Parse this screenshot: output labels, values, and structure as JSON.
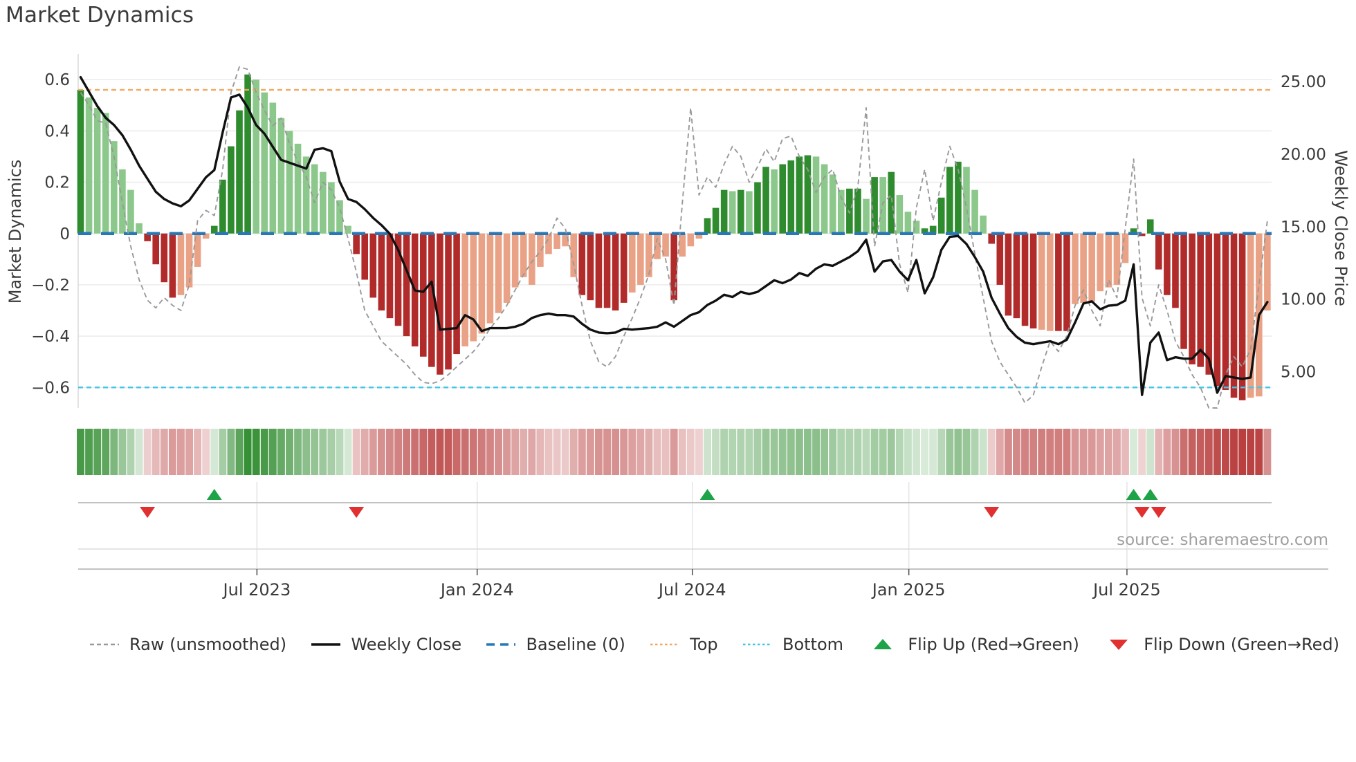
{
  "page": {
    "title": "Market Dynamics",
    "source_credit": "source: sharemaestro.com"
  },
  "colors": {
    "bar_green_strong": "#2e8b2e",
    "bar_green_light": "#8cc88c",
    "bar_red_strong": "#b22b2b",
    "bar_red_light": "#e9a286",
    "baseline_blue": "#2878b8",
    "top_orange": "#f0a860",
    "bottom_cyan": "#3ec6e8",
    "raw_gray": "#999999",
    "close_black": "#111111",
    "flip_up_green": "#1fa348",
    "flip_down_red": "#e03030",
    "grid": "#ebebeb",
    "panel_line": "#c2c2c2",
    "panel_line_light": "#dcdcdc",
    "panel_grid": "#e6e6e6",
    "axis_text": "#3a3a3a",
    "muted_text": "#a0a0a0"
  },
  "chart_data": {
    "type": "bar",
    "title": "Market Dynamics",
    "ylabel_left": "Market Dynamics",
    "ylabel_right": "Weekly Close Price",
    "weeks": 143,
    "ylim_left": [
      -0.68,
      0.7
    ],
    "ylim_right": [
      2.5,
      26.9
    ],
    "yticks_left_labels": [
      "0.6",
      "0.4",
      "0.2",
      "0",
      "−0.2",
      "−0.4",
      "−0.6"
    ],
    "yticks_left_values": [
      0.6,
      0.4,
      0.2,
      0,
      -0.2,
      -0.4,
      -0.6
    ],
    "yticks_right_labels": [
      "25.00",
      "20.00",
      "15.00",
      "10.00",
      "5.00"
    ],
    "yticks_right_values": [
      25,
      20,
      15,
      10,
      5
    ],
    "x_tick_labels": [
      "Jul 2023",
      "Jan 2024",
      "Jul 2024",
      "Jan 2025",
      "Jul 2025"
    ],
    "x_tick_weeks": [
      21.1,
      47.45,
      73.2,
      99.1,
      125.2
    ],
    "baseline": 0,
    "top_line": 0.56,
    "bottom_line": -0.6,
    "grid": "on",
    "legend_position": "bottom",
    "series": [
      {
        "name": "Oscillator (weekly bars)",
        "role": "bars",
        "axis": "left",
        "values": [
          0.56,
          0.53,
          0.49,
          0.47,
          0.36,
          0.25,
          0.17,
          0.04,
          -0.03,
          -0.12,
          -0.19,
          -0.25,
          -0.24,
          -0.21,
          -0.13,
          -0.02,
          0.03,
          0.21,
          0.34,
          0.48,
          0.62,
          0.6,
          0.55,
          0.51,
          0.45,
          0.4,
          0.35,
          0.3,
          0.27,
          0.24,
          0.2,
          0.13,
          0.03,
          -0.08,
          -0.18,
          -0.25,
          -0.3,
          -0.33,
          -0.36,
          -0.4,
          -0.44,
          -0.48,
          -0.52,
          -0.55,
          -0.53,
          -0.47,
          -0.44,
          -0.42,
          -0.39,
          -0.35,
          -0.31,
          -0.27,
          -0.21,
          -0.17,
          -0.2,
          -0.13,
          -0.08,
          -0.06,
          -0.05,
          -0.17,
          -0.24,
          -0.26,
          -0.29,
          -0.29,
          -0.3,
          -0.27,
          -0.23,
          -0.2,
          -0.17,
          -0.1,
          -0.09,
          -0.26,
          -0.09,
          -0.05,
          -0.02,
          0.06,
          0.1,
          0.17,
          0.165,
          0.17,
          0.165,
          0.2,
          0.26,
          0.25,
          0.27,
          0.285,
          0.3,
          0.305,
          0.3,
          0.27,
          0.23,
          0.17,
          0.175,
          0.175,
          0.135,
          0.22,
          0.22,
          0.24,
          0.15,
          0.085,
          0.05,
          0.02,
          0.03,
          0.14,
          0.26,
          0.28,
          0.26,
          0.17,
          0.07,
          -0.04,
          -0.2,
          -0.32,
          -0.33,
          -0.36,
          -0.37,
          -0.375,
          -0.38,
          -0.38,
          -0.38,
          -0.275,
          -0.27,
          -0.265,
          -0.225,
          -0.21,
          -0.2,
          -0.115,
          0.02,
          -0.01,
          0.055,
          -0.14,
          -0.24,
          -0.29,
          -0.45,
          -0.51,
          -0.52,
          -0.55,
          -0.595,
          -0.61,
          -0.64,
          -0.65,
          -0.64,
          -0.635,
          -0.3
        ],
        "strong": [
          1,
          0,
          0,
          0,
          0,
          0,
          0,
          0,
          1,
          1,
          1,
          1,
          0,
          0,
          0,
          0,
          1,
          1,
          1,
          1,
          1,
          0,
          0,
          0,
          0,
          0,
          0,
          0,
          0,
          0,
          0,
          0,
          0,
          1,
          1,
          1,
          1,
          1,
          1,
          1,
          1,
          1,
          1,
          1,
          1,
          1,
          0,
          0,
          0,
          0,
          0,
          0,
          0,
          0,
          0,
          0,
          0,
          0,
          0,
          0,
          1,
          1,
          1,
          1,
          1,
          1,
          0,
          0,
          0,
          0,
          0,
          1,
          0,
          0,
          0,
          1,
          1,
          1,
          0,
          1,
          0,
          1,
          1,
          0,
          1,
          1,
          1,
          1,
          0,
          0,
          0,
          0,
          1,
          1,
          0,
          1,
          0,
          1,
          0,
          0,
          0,
          1,
          1,
          1,
          1,
          1,
          0,
          0,
          0,
          1,
          1,
          1,
          1,
          1,
          1,
          0,
          0,
          1,
          1,
          0,
          0,
          0,
          0,
          0,
          0,
          0,
          1,
          1,
          1,
          1,
          1,
          1,
          1,
          1,
          1,
          1,
          1,
          1,
          1,
          1,
          0,
          0,
          0
        ]
      },
      {
        "name": "Raw (unsmoothed)",
        "role": "line",
        "axis": "left",
        "values": [
          0.55,
          0.5,
          0.44,
          0.43,
          0.3,
          0.12,
          -0.05,
          -0.18,
          -0.26,
          -0.29,
          -0.25,
          -0.28,
          -0.3,
          -0.2,
          0.05,
          0.09,
          0.07,
          0.25,
          0.55,
          0.65,
          0.64,
          0.55,
          0.48,
          0.42,
          0.45,
          0.35,
          0.28,
          0.22,
          0.12,
          0.2,
          0.17,
          0.1,
          -0.02,
          -0.15,
          -0.3,
          -0.36,
          -0.42,
          -0.45,
          -0.48,
          -0.51,
          -0.55,
          -0.58,
          -0.585,
          -0.575,
          -0.55,
          -0.52,
          -0.49,
          -0.46,
          -0.42,
          -0.37,
          -0.33,
          -0.28,
          -0.22,
          -0.16,
          -0.11,
          -0.07,
          -0.02,
          0.06,
          0.02,
          -0.12,
          -0.28,
          -0.42,
          -0.5,
          -0.52,
          -0.48,
          -0.4,
          -0.33,
          -0.25,
          -0.16,
          -0.02,
          -0.1,
          -0.28,
          0.12,
          0.49,
          0.15,
          0.22,
          0.18,
          0.27,
          0.34,
          0.3,
          0.2,
          0.26,
          0.33,
          0.28,
          0.37,
          0.38,
          0.3,
          0.25,
          0.16,
          0.22,
          0.25,
          0.14,
          0.08,
          0.18,
          0.49,
          -0.05,
          0.12,
          0.15,
          -0.12,
          -0.23,
          0.1,
          0.25,
          0.05,
          0.2,
          0.34,
          0.25,
          0.1,
          -0.08,
          -0.25,
          -0.42,
          -0.5,
          -0.55,
          -0.6,
          -0.66,
          -0.63,
          -0.52,
          -0.42,
          -0.46,
          -0.4,
          -0.28,
          -0.22,
          -0.3,
          -0.36,
          -0.18,
          -0.25,
          0.02,
          0.29,
          -0.25,
          -0.36,
          -0.2,
          -0.3,
          -0.42,
          -0.48,
          -0.55,
          -0.6,
          -0.7,
          -0.68,
          -0.55,
          -0.48,
          -0.52,
          -0.45,
          -0.2,
          0.05
        ]
      },
      {
        "name": "Weekly Close",
        "role": "line",
        "axis": "right",
        "values": [
          25.3,
          24.3,
          23.3,
          22.5,
          22.0,
          21.3,
          20.3,
          19.2,
          18.3,
          17.4,
          16.9,
          16.6,
          16.4,
          16.8,
          17.6,
          18.4,
          18.9,
          21.5,
          23.9,
          24.1,
          23.2,
          22.0,
          21.4,
          20.5,
          19.6,
          19.4,
          19.2,
          19.0,
          20.3,
          20.4,
          20.2,
          18.1,
          16.9,
          16.7,
          16.2,
          15.6,
          15.1,
          14.5,
          13.4,
          12.0,
          10.6,
          10.5,
          11.2,
          7.9,
          7.95,
          8.0,
          8.9,
          8.6,
          7.8,
          8.0,
          8.0,
          8.0,
          8.1,
          8.3,
          8.7,
          8.9,
          9.0,
          8.9,
          8.9,
          8.8,
          8.3,
          7.9,
          7.7,
          7.65,
          7.7,
          7.95,
          7.9,
          7.95,
          8.0,
          8.1,
          8.4,
          8.1,
          8.5,
          8.9,
          9.1,
          9.6,
          9.9,
          10.3,
          10.15,
          10.5,
          10.35,
          10.5,
          10.9,
          11.3,
          11.1,
          11.35,
          11.8,
          11.6,
          12.1,
          12.4,
          12.3,
          12.6,
          12.9,
          13.3,
          14.1,
          11.9,
          12.6,
          12.7,
          11.9,
          11.3,
          12.7,
          10.4,
          11.5,
          13.4,
          14.3,
          14.35,
          13.8,
          12.9,
          11.9,
          10.1,
          9.0,
          8.0,
          7.4,
          7.0,
          6.9,
          7.0,
          7.1,
          6.9,
          7.2,
          8.4,
          9.7,
          9.85,
          9.3,
          9.55,
          9.6,
          9.9,
          12.4,
          3.4,
          7.0,
          7.7,
          5.8,
          6.0,
          5.9,
          5.9,
          6.5,
          5.9,
          3.55,
          4.7,
          4.6,
          4.5,
          4.6,
          8.9,
          9.8
        ]
      }
    ],
    "flip_up_weeks": [
      16,
      75,
      126,
      128
    ],
    "flip_down_weeks": [
      8,
      33,
      109,
      127,
      129
    ],
    "heatmap": "same values as bars, green/red intensity strip",
    "legend": [
      {
        "id": "raw",
        "label": "Raw (unsmoothed)",
        "glyph": "dashed-line",
        "color": "#999999"
      },
      {
        "id": "close",
        "label": "Weekly Close",
        "glyph": "solid-line",
        "color": "#111111"
      },
      {
        "id": "baseline",
        "label": "Baseline (0)",
        "glyph": "long-dash-line",
        "color": "#2878b8"
      },
      {
        "id": "top",
        "label": "Top",
        "glyph": "dotted-line",
        "color": "#f0a860"
      },
      {
        "id": "bottom",
        "label": "Bottom",
        "glyph": "dotted-line",
        "color": "#3ec6e8"
      },
      {
        "id": "flip-up",
        "label": "Flip Up (Red→Green)",
        "glyph": "triangle-up",
        "color": "#1fa348"
      },
      {
        "id": "flip-down",
        "label": "Flip Down (Green→Red)",
        "glyph": "triangle-down",
        "color": "#e03030"
      }
    ]
  }
}
